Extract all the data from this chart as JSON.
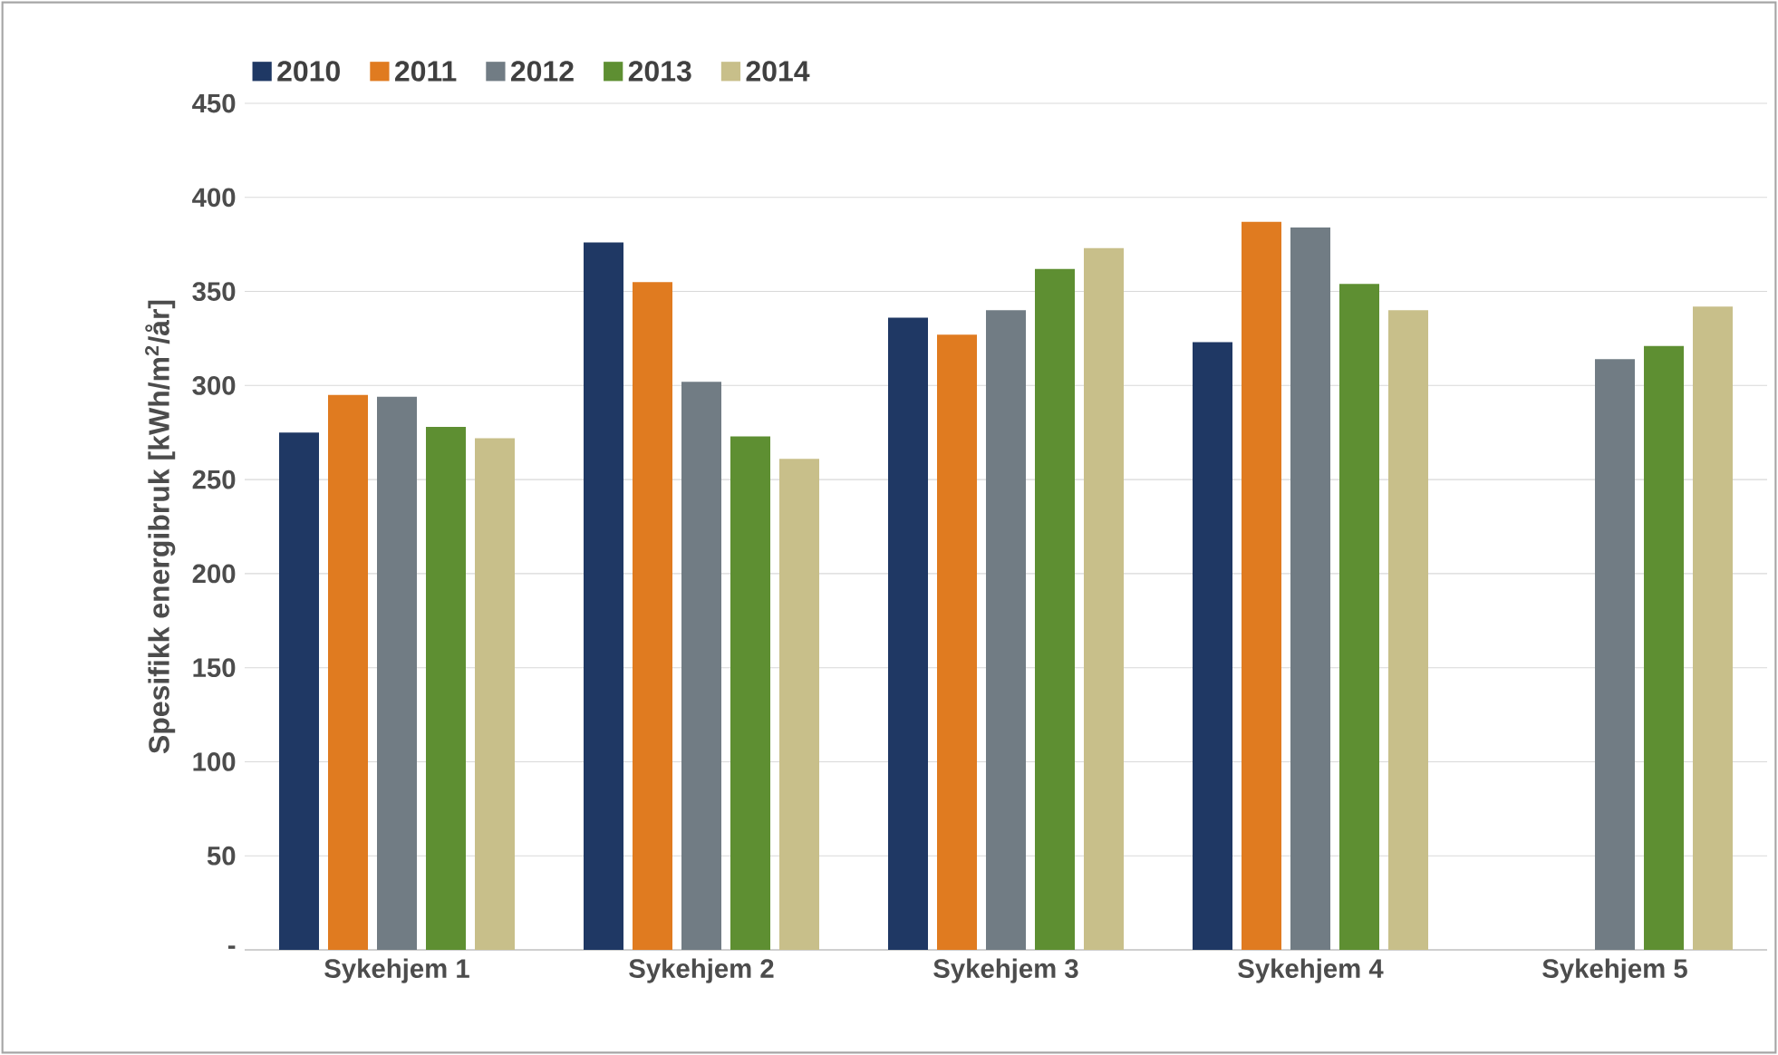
{
  "chart_data": {
    "type": "bar",
    "ylabel": "Spesifikk energibruk [kWh/m$^{2}$/år]",
    "categories": [
      "Sykehjem 1",
      "Sykehjem 2",
      "Sykehjem 3",
      "Sykehjem 4",
      "Sykehjem 5"
    ],
    "series": [
      {
        "name": "2010",
        "color": "#1f3864",
        "values": [
          275,
          376,
          336,
          323,
          null
        ]
      },
      {
        "name": "2011",
        "color": "#e07b20",
        "values": [
          295,
          355,
          327,
          387,
          null
        ]
      },
      {
        "name": "2012",
        "color": "#717c84",
        "values": [
          294,
          302,
          340,
          384,
          314
        ]
      },
      {
        "name": "2013",
        "color": "#5e8f32",
        "values": [
          278,
          273,
          362,
          354,
          321
        ]
      },
      {
        "name": "2014",
        "color": "#c8bf8a",
        "values": [
          272,
          261,
          373,
          340,
          342
        ]
      }
    ],
    "ylim": [
      0,
      450
    ],
    "yticks": [
      {
        "value": 0,
        "label": "-"
      },
      50,
      100,
      150,
      200,
      250,
      300,
      350,
      400,
      450
    ],
    "grid": "y",
    "legend": "top left"
  }
}
